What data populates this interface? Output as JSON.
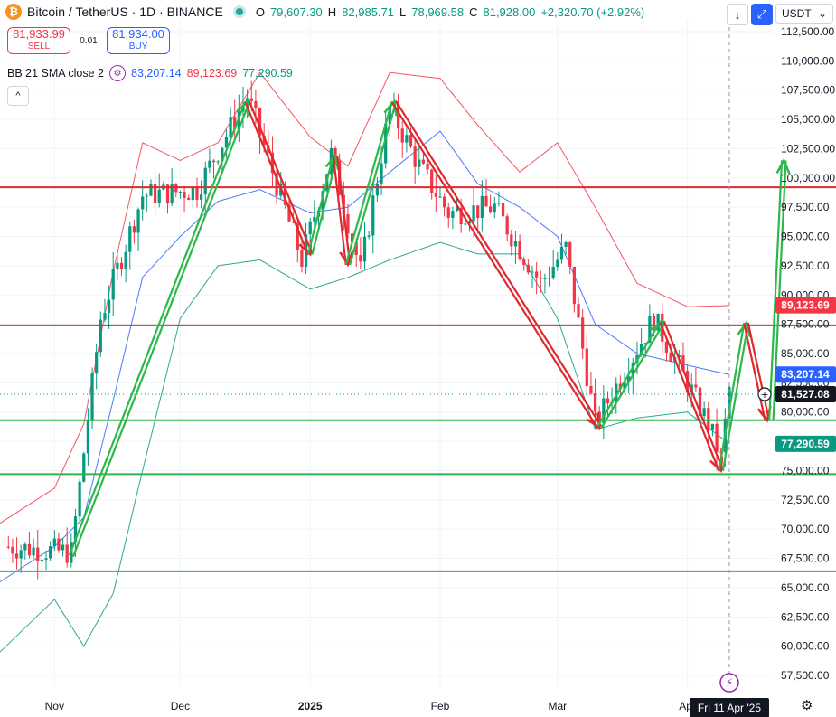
{
  "header": {
    "symbol": "Bitcoin / TetherUS · 1D · BINANCE",
    "symbol_icon": "₿",
    "ohlc": [
      {
        "k": "O",
        "v": "79,607.30"
      },
      {
        "k": "H",
        "v": "82,985.71"
      },
      {
        "k": "L",
        "v": "78,969.58"
      },
      {
        "k": "C",
        "v": "81,928.00"
      }
    ],
    "change": "+2,320.70 (+2.92%)"
  },
  "trade": {
    "sell_price": "81,933.99",
    "sell_label": "SELL",
    "spread": "0.01",
    "buy_price": "81,934.00",
    "buy_label": "BUY"
  },
  "indicator": {
    "name": "BB 21 SMA close 2",
    "basis": "83,207.14",
    "upper": "89,123.69",
    "lower": "77,290.59",
    "colors": {
      "basis": "#2962ff",
      "upper": "#f23645",
      "lower": "#089981"
    }
  },
  "toolbar": {
    "currency": "USDT",
    "download_icon": "↓",
    "fullscreen_icon": "⤢",
    "collapse_icon": "^",
    "currency_arrow": "⌄"
  },
  "chart_data": {
    "type": "candlestick",
    "symbol": "BTCUSDT",
    "interval": "1D",
    "ylim": [
      56500,
      113500
    ],
    "y_ticks": [
      57500,
      60000,
      62500,
      65000,
      67500,
      70000,
      72500,
      75000,
      77500,
      80000,
      82500,
      85000,
      87500,
      90000,
      92500,
      95000,
      97500,
      100000,
      102500,
      105000,
      107500,
      110000,
      112500
    ],
    "x_labels": [
      {
        "label": "Nov",
        "date": "2024-11-01"
      },
      {
        "label": "Dec",
        "date": "2024-12-01"
      },
      {
        "label": "2025",
        "date": "2025-01-01"
      },
      {
        "label": "Feb",
        "date": "2025-02-01"
      },
      {
        "label": "Mar",
        "date": "2025-03-01"
      },
      {
        "label": "Apr",
        "date": "2025-04-01"
      }
    ],
    "x_range": [
      "2024-10-19",
      "2025-04-22"
    ],
    "price_tags": [
      {
        "value": 89123.69,
        "text": "89,123.69",
        "color": "#f23645"
      },
      {
        "value": 83207.14,
        "text": "83,207.14",
        "color": "#2962ff"
      },
      {
        "value": 81527.08,
        "text": "81,527.08",
        "color": "#131722"
      },
      {
        "value": 77290.59,
        "text": "77,290.59",
        "color": "#089981"
      }
    ],
    "crosshair": {
      "date": "2025-04-11",
      "label": "Fri 11 Apr '25",
      "price": 81527.08
    },
    "horizontal_lines": [
      {
        "price": 99200,
        "color": "#e0282e"
      },
      {
        "price": 87400,
        "color": "#e0282e"
      },
      {
        "price": 79300,
        "color": "#31b44b"
      },
      {
        "price": 74700,
        "color": "#31b44b"
      },
      {
        "price": 66400,
        "color": "#31b44b"
      }
    ],
    "key_points": [
      {
        "date": "2024-10-21",
        "price": 68500
      },
      {
        "date": "2024-11-05",
        "price": 68000
      },
      {
        "date": "2024-11-12",
        "price": 88000
      },
      {
        "date": "2024-11-22",
        "price": 98500
      },
      {
        "date": "2024-12-05",
        "price": 99000
      },
      {
        "date": "2024-12-17",
        "price": 107000
      },
      {
        "date": "2024-12-30",
        "price": 93000
      },
      {
        "date": "2025-01-06",
        "price": 102000
      },
      {
        "date": "2025-01-13",
        "price": 92000
      },
      {
        "date": "2025-01-20",
        "price": 106000
      },
      {
        "date": "2025-01-27",
        "price": 101000
      },
      {
        "date": "2025-02-03",
        "price": 97000
      },
      {
        "date": "2025-02-14",
        "price": 97500
      },
      {
        "date": "2025-02-25",
        "price": 91000
      },
      {
        "date": "2025-03-03",
        "price": 94000
      },
      {
        "date": "2025-03-10",
        "price": 79000
      },
      {
        "date": "2025-03-24",
        "price": 88000
      },
      {
        "date": "2025-04-06",
        "price": 79000
      },
      {
        "date": "2025-04-09",
        "price": 76000
      },
      {
        "date": "2025-04-11",
        "price": 82000
      }
    ],
    "arrows": [
      {
        "color": "green",
        "from": [
          "2024-11-05",
          67700
        ],
        "to": [
          "2024-12-17",
          106500
        ]
      },
      {
        "color": "red",
        "from": [
          "2024-12-17",
          106500
        ],
        "to": [
          "2025-01-01",
          93500
        ]
      },
      {
        "color": "green",
        "from": [
          "2025-01-01",
          93500
        ],
        "to": [
          "2025-01-07",
          101900
        ]
      },
      {
        "color": "red",
        "from": [
          "2025-01-07",
          101900
        ],
        "to": [
          "2025-01-10",
          92600
        ]
      },
      {
        "color": "green",
        "from": [
          "2025-01-10",
          92600
        ],
        "to": [
          "2025-01-21",
          106500
        ]
      },
      {
        "color": "red",
        "from": [
          "2025-01-21",
          106500
        ],
        "to": [
          "2025-03-11",
          78700
        ]
      },
      {
        "color": "green",
        "from": [
          "2025-03-11",
          78700
        ],
        "to": [
          "2025-03-26",
          87700
        ]
      },
      {
        "color": "red",
        "from": [
          "2025-03-26",
          87700
        ],
        "to": [
          "2025-04-09",
          75000
        ]
      },
      {
        "color": "green",
        "from": [
          "2025-04-09",
          75000
        ],
        "to": [
          "2025-04-15",
          87600
        ]
      },
      {
        "color": "red",
        "from": [
          "2025-04-15",
          87600
        ],
        "to": [
          "2025-04-20",
          79300
        ]
      },
      {
        "color": "green",
        "from": [
          "2025-04-21",
          79300
        ],
        "to": [
          "2025-04-24",
          101500
        ]
      }
    ],
    "bollinger_samples": {
      "dates": [
        "2024-10-19",
        "2024-11-01",
        "2024-11-08",
        "2024-11-15",
        "2024-11-22",
        "2024-12-01",
        "2024-12-10",
        "2024-12-20",
        "2025-01-01",
        "2025-01-10",
        "2025-01-20",
        "2025-02-01",
        "2025-02-10",
        "2025-02-20",
        "2025-03-01",
        "2025-03-10",
        "2025-03-20",
        "2025-04-01",
        "2025-04-11"
      ],
      "upper": [
        70500,
        73500,
        79000,
        92000,
        103000,
        101500,
        103000,
        109000,
        103500,
        101000,
        109000,
        108500,
        104500,
        100500,
        103000,
        97500,
        91000,
        89000,
        89100
      ],
      "basis": [
        65500,
        68500,
        71000,
        81000,
        91500,
        95000,
        98000,
        99000,
        97000,
        97500,
        100500,
        104000,
        99500,
        97500,
        95000,
        87500,
        85000,
        84000,
        83200
      ],
      "lower": [
        59500,
        64000,
        60000,
        64500,
        75000,
        88000,
        92500,
        93000,
        90500,
        91500,
        93000,
        94500,
        93500,
        93500,
        88000,
        78500,
        79500,
        80000,
        77300
      ]
    }
  }
}
